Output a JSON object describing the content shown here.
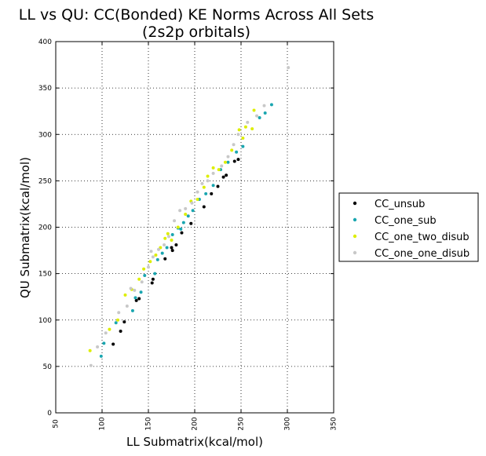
{
  "chart_data": {
    "type": "scatter",
    "title": [
      "LL vs QU: CC(Bonded) KE Norms Across All Sets",
      "(2s2p orbitals)"
    ],
    "xlabel": "LL Submatrix(kcal/mol)",
    "ylabel": "QU Submatrix(kcal/mol)",
    "xlim": [
      50,
      350
    ],
    "ylim": [
      0,
      400
    ],
    "xticks": [
      50,
      100,
      150,
      200,
      250,
      300,
      350
    ],
    "yticks": [
      0,
      50,
      100,
      150,
      200,
      250,
      300,
      350,
      400
    ],
    "grid": true,
    "legend_position": "right",
    "series": [
      {
        "name": "CC_unsub",
        "color": "#000000",
        "points": [
          [
            112,
            74
          ],
          [
            120,
            88
          ],
          [
            124,
            98
          ],
          [
            137,
            121
          ],
          [
            140,
            123
          ],
          [
            154,
            140
          ],
          [
            155,
            144
          ],
          [
            168,
            166
          ],
          [
            176,
            175
          ],
          [
            180,
            181
          ],
          [
            186,
            194
          ],
          [
            196,
            204
          ],
          [
            210,
            222
          ],
          [
            218,
            236
          ],
          [
            225,
            244
          ],
          [
            231,
            254
          ],
          [
            234,
            256
          ],
          [
            243,
            271
          ],
          [
            247,
            273
          ],
          [
            175,
            178
          ]
        ]
      },
      {
        "name": "CC_one_sub",
        "color": "#1aa6b0",
        "points": [
          [
            99,
            61
          ],
          [
            102,
            75
          ],
          [
            115,
            97
          ],
          [
            133,
            110
          ],
          [
            136,
            124
          ],
          [
            142,
            130
          ],
          [
            146,
            148
          ],
          [
            160,
            165
          ],
          [
            165,
            172
          ],
          [
            170,
            178
          ],
          [
            176,
            192
          ],
          [
            182,
            199
          ],
          [
            188,
            205
          ],
          [
            193,
            212
          ],
          [
            198,
            218
          ],
          [
            205,
            230
          ],
          [
            212,
            236
          ],
          [
            220,
            245
          ],
          [
            228,
            262
          ],
          [
            236,
            270
          ],
          [
            245,
            281
          ],
          [
            252,
            287
          ],
          [
            270,
            318
          ],
          [
            276,
            323
          ],
          [
            283,
            332
          ],
          [
            185,
            198
          ],
          [
            157,
            150
          ]
        ]
      },
      {
        "name": "CC_one_two_disub",
        "color": "#ddee00",
        "points": [
          [
            87,
            67
          ],
          [
            108,
            90
          ],
          [
            117,
            100
          ],
          [
            125,
            127
          ],
          [
            132,
            133
          ],
          [
            145,
            155
          ],
          [
            152,
            163
          ],
          [
            158,
            170
          ],
          [
            163,
            178
          ],
          [
            168,
            188
          ],
          [
            175,
            186
          ],
          [
            182,
            200
          ],
          [
            190,
            214
          ],
          [
            196,
            228
          ],
          [
            203,
            230
          ],
          [
            210,
            243
          ],
          [
            214,
            255
          ],
          [
            220,
            264
          ],
          [
            226,
            262
          ],
          [
            233,
            270
          ],
          [
            240,
            283
          ],
          [
            248,
            305
          ],
          [
            252,
            296
          ],
          [
            255,
            308
          ],
          [
            262,
            306
          ],
          [
            264,
            326
          ],
          [
            140,
            144
          ],
          [
            171,
            193
          ]
        ]
      },
      {
        "name": "CC_one_one_disub",
        "color": "#c8c8c8",
        "points": [
          [
            88,
            51
          ],
          [
            95,
            71
          ],
          [
            104,
            86
          ],
          [
            118,
            108
          ],
          [
            127,
            115
          ],
          [
            135,
            132
          ],
          [
            143,
            141
          ],
          [
            150,
            157
          ],
          [
            155,
            168
          ],
          [
            161,
            176
          ],
          [
            167,
            181
          ],
          [
            172,
            190
          ],
          [
            178,
            207
          ],
          [
            184,
            218
          ],
          [
            190,
            220
          ],
          [
            197,
            226
          ],
          [
            203,
            238
          ],
          [
            208,
            247
          ],
          [
            214,
            250
          ],
          [
            220,
            258
          ],
          [
            229,
            266
          ],
          [
            236,
            276
          ],
          [
            242,
            289
          ],
          [
            247,
            300
          ],
          [
            257,
            313
          ],
          [
            267,
            320
          ],
          [
            275,
            331
          ],
          [
            301,
            372
          ],
          [
            153,
            174
          ],
          [
            131,
            134
          ]
        ]
      }
    ]
  }
}
